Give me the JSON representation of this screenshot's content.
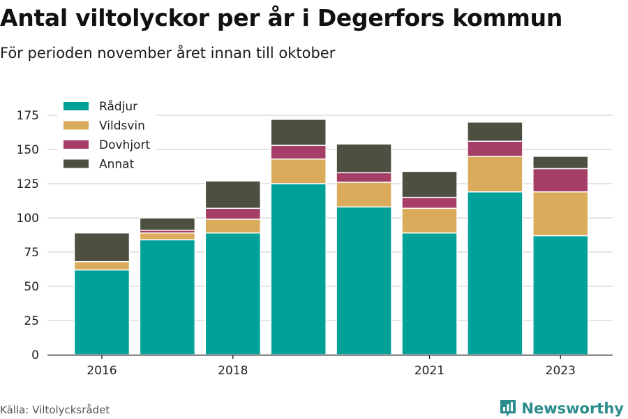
{
  "title": "Antal viltolyckor per år i Degerfors kommun",
  "subtitle": "För perioden november året innan till oktober",
  "source": "Källa: Viltolycksrådet",
  "brand": {
    "name": "Newsworthy",
    "icon": "bar-chart-logo-icon"
  },
  "colors": {
    "Rådjur": "#00a199",
    "Vildsvin": "#d9ab5a",
    "Dovhjort": "#a63f68",
    "Annat": "#4d4f40",
    "grid": "#dcdcdc",
    "axis": "#333333",
    "brand": "#2a8c8c"
  },
  "chart_data": {
    "type": "bar",
    "stacked": true,
    "categories": [
      "2016",
      "2017",
      "2018",
      "2019",
      "2020",
      "2021",
      "2022",
      "2023"
    ],
    "x_tick_labels": [
      "2016",
      "",
      "2018",
      "",
      "",
      "2021",
      "",
      "2023"
    ],
    "series": [
      {
        "name": "Rådjur",
        "values": [
          62,
          84,
          89,
          125,
          108,
          89,
          119,
          87
        ]
      },
      {
        "name": "Vildsvin",
        "values": [
          6,
          5,
          10,
          18,
          18,
          18,
          26,
          32
        ]
      },
      {
        "name": "Dovhjort",
        "values": [
          0,
          2,
          8,
          10,
          7,
          8,
          11,
          17
        ]
      },
      {
        "name": "Annat",
        "values": [
          21,
          9,
          20,
          19,
          21,
          19,
          14,
          9
        ]
      }
    ],
    "y_ticks": [
      0,
      25,
      50,
      75,
      100,
      125,
      150,
      175
    ],
    "ylim": [
      0,
      185
    ],
    "grid": true,
    "legend": "top-left"
  }
}
